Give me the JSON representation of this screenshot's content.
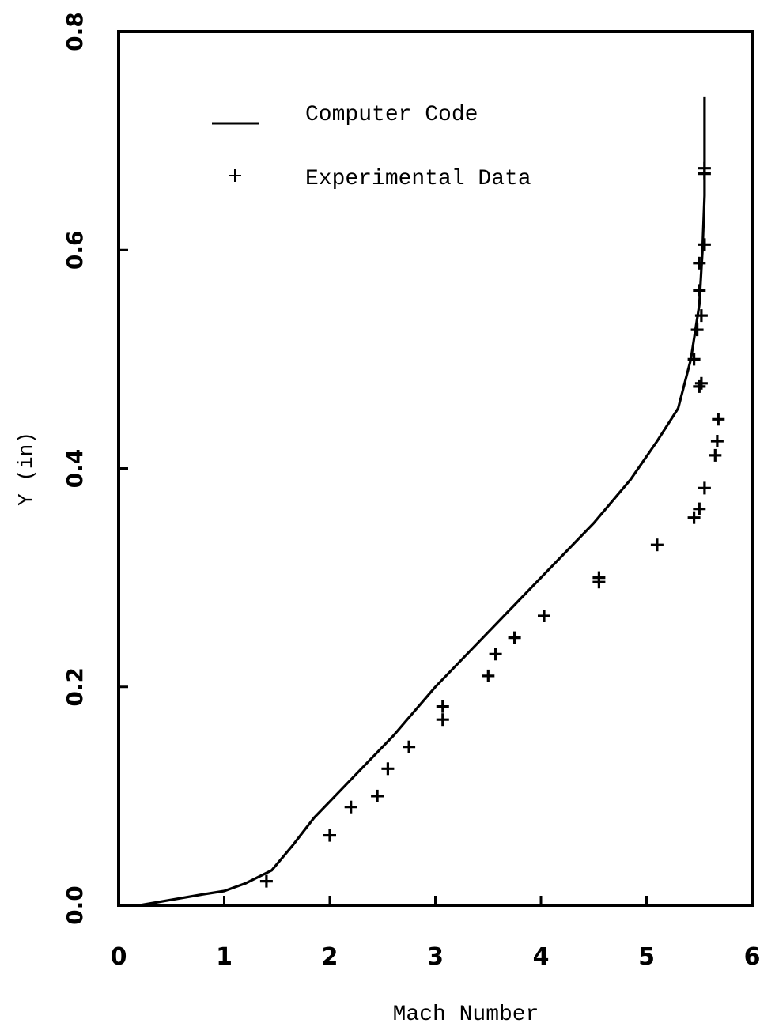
{
  "chart_data": {
    "type": "line",
    "title": "",
    "xlabel": "Mach Number",
    "ylabel": "Y (in)",
    "xlim": [
      0,
      6
    ],
    "ylim": [
      0,
      0.8
    ],
    "x_ticks": [
      0,
      1,
      2,
      3,
      4,
      5,
      6
    ],
    "x_tick_labels": [
      "0",
      "1",
      "2",
      "3",
      "4",
      "5",
      "6"
    ],
    "y_ticks": [
      0,
      0.2,
      0.4,
      0.6,
      0.8
    ],
    "y_tick_labels": [
      "0.0",
      "0.2",
      "0.4",
      "0.6",
      "0.8"
    ],
    "grid": false,
    "legend": "top-left",
    "series": [
      {
        "name": "Computer Code",
        "style": "line",
        "color": "#000000",
        "points": [
          [
            0.2,
            0.0
          ],
          [
            0.5,
            0.005
          ],
          [
            0.8,
            0.01
          ],
          [
            1.0,
            0.013
          ],
          [
            1.2,
            0.02
          ],
          [
            1.45,
            0.032
          ],
          [
            1.65,
            0.055
          ],
          [
            1.85,
            0.08
          ],
          [
            2.0,
            0.095
          ],
          [
            2.3,
            0.125
          ],
          [
            2.6,
            0.155
          ],
          [
            3.0,
            0.2
          ],
          [
            3.5,
            0.25
          ],
          [
            4.0,
            0.3
          ],
          [
            4.5,
            0.35
          ],
          [
            4.85,
            0.39
          ],
          [
            5.1,
            0.425
          ],
          [
            5.3,
            0.455
          ],
          [
            5.42,
            0.5
          ],
          [
            5.5,
            0.55
          ],
          [
            5.53,
            0.6
          ],
          [
            5.55,
            0.65
          ],
          [
            5.55,
            0.74
          ]
        ]
      },
      {
        "name": "Experimental Data",
        "style": "marker",
        "marker": "+",
        "color": "#000000",
        "points": [
          [
            1.4,
            0.022
          ],
          [
            2.0,
            0.064
          ],
          [
            2.2,
            0.09
          ],
          [
            2.45,
            0.1
          ],
          [
            2.55,
            0.125
          ],
          [
            2.75,
            0.145
          ],
          [
            3.07,
            0.17
          ],
          [
            3.07,
            0.182
          ],
          [
            3.5,
            0.21
          ],
          [
            3.57,
            0.23
          ],
          [
            3.75,
            0.245
          ],
          [
            4.03,
            0.265
          ],
          [
            4.55,
            0.296
          ],
          [
            4.55,
            0.3
          ],
          [
            5.1,
            0.33
          ],
          [
            5.45,
            0.355
          ],
          [
            5.5,
            0.363
          ],
          [
            5.55,
            0.382
          ],
          [
            5.65,
            0.412
          ],
          [
            5.67,
            0.425
          ],
          [
            5.68,
            0.445
          ],
          [
            5.5,
            0.475
          ],
          [
            5.52,
            0.478
          ],
          [
            5.45,
            0.5
          ],
          [
            5.48,
            0.527
          ],
          [
            5.52,
            0.54
          ],
          [
            5.5,
            0.563
          ],
          [
            5.5,
            0.588
          ],
          [
            5.55,
            0.605
          ],
          [
            5.55,
            0.67
          ],
          [
            5.55,
            0.675
          ]
        ]
      }
    ]
  }
}
